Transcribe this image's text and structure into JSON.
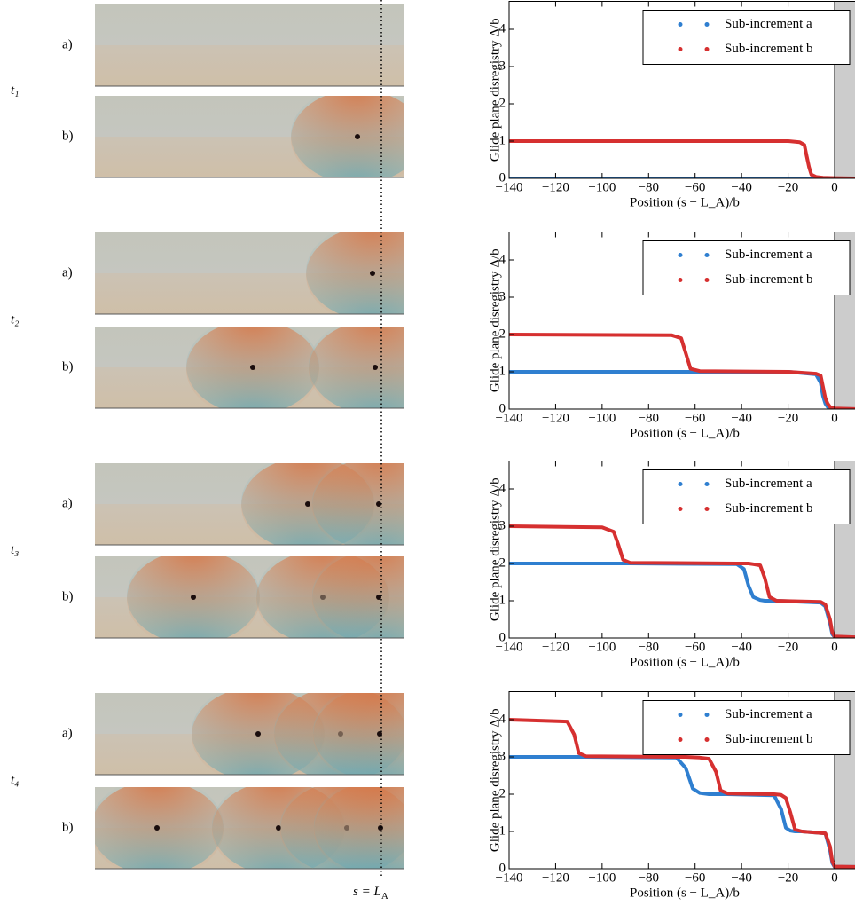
{
  "figure": {
    "time_panels": [
      {
        "time": "t₁",
        "rows": [
          "a)",
          "b)"
        ]
      },
      {
        "time": "t₂",
        "rows": [
          "a)",
          "b)"
        ]
      },
      {
        "time": "t₃",
        "rows": [
          "a)",
          "b)"
        ]
      },
      {
        "time": "t₄",
        "rows": [
          "a)",
          "b)"
        ]
      }
    ],
    "marker_label": {
      "text": "s = L",
      "sub": "A"
    }
  },
  "chart_data": [
    {
      "type": "line",
      "xlabel": "Position (s − L_A)/b",
      "ylabel": "Glide plane disregistry Δ/b",
      "legend": "upper right",
      "shaded_region": [
        0,
        20
      ],
      "shade_color": "#cccccc",
      "xlim": [
        -140,
        20
      ],
      "ylim": [
        0,
        4.75
      ],
      "xticks": [
        {
          "value": -140,
          "label": "−140"
        },
        {
          "value": -120,
          "label": "−120"
        },
        {
          "value": -100,
          "label": "−100"
        },
        {
          "value": -80,
          "label": "−80"
        },
        {
          "value": -60,
          "label": "−60"
        },
        {
          "value": -40,
          "label": "−40"
        },
        {
          "value": -20,
          "label": "−20"
        },
        0
      ],
      "yticks": [
        0,
        1,
        2,
        3,
        4
      ],
      "x": [
        -140,
        -20,
        -15,
        -13,
        -12,
        -11,
        -10,
        -8,
        -5,
        0,
        10
      ],
      "series": [
        {
          "name": "Sub-increment a",
          "color": "#2f7fd0",
          "values": [
            0,
            0,
            0,
            0,
            0,
            0,
            0,
            0,
            0,
            0,
            0
          ]
        },
        {
          "name": "Sub-increment b",
          "color": "#d63030",
          "values": [
            1,
            1,
            0.97,
            0.9,
            0.6,
            0.3,
            0.1,
            0.04,
            0.02,
            0.01,
            0
          ]
        }
      ]
    },
    {
      "type": "line",
      "xlabel": "Position (s − L_A)/b",
      "ylabel": "Glide plane disregistry Δ/b",
      "legend": "upper right",
      "shaded_region": [
        0,
        20
      ],
      "shade_color": "#cccccc",
      "xlim": [
        -140,
        20
      ],
      "ylim": [
        0,
        4.75
      ],
      "xticks": [
        {
          "value": -140,
          "label": "−140"
        },
        {
          "value": -120,
          "label": "−120"
        },
        {
          "value": -100,
          "label": "−100"
        },
        {
          "value": -80,
          "label": "−80"
        },
        {
          "value": -60,
          "label": "−60"
        },
        {
          "value": -40,
          "label": "−40"
        },
        {
          "value": -20,
          "label": "−20"
        },
        0
      ],
      "yticks": [
        0,
        1,
        2,
        3,
        4
      ],
      "x": [
        -140,
        -70,
        -66,
        -64,
        -62,
        -58,
        -20,
        -8,
        -6,
        -5,
        -4,
        -3,
        -2,
        0,
        10
      ],
      "series": [
        {
          "name": "Sub-increment a",
          "color": "#2f7fd0",
          "values": [
            1,
            1,
            1,
            1,
            1,
            1,
            1,
            0.93,
            0.7,
            0.35,
            0.15,
            0.06,
            0.03,
            0.01,
            0
          ]
        },
        {
          "name": "Sub-increment b",
          "color": "#d63030",
          "values": [
            2,
            1.98,
            1.9,
            1.5,
            1.08,
            1.02,
            1.0,
            0.95,
            0.9,
            0.6,
            0.3,
            0.15,
            0.06,
            0.02,
            0
          ]
        }
      ]
    },
    {
      "type": "line",
      "xlabel": "Position (s − L_A)/b",
      "ylabel": "Glide plane disregistry Δ/b",
      "legend": "upper right",
      "shaded_region": [
        0,
        20
      ],
      "shade_color": "#cccccc",
      "xlim": [
        -140,
        20
      ],
      "ylim": [
        0,
        4.75
      ],
      "xticks": [
        {
          "value": -140,
          "label": "−140"
        },
        {
          "value": -120,
          "label": "−120"
        },
        {
          "value": -100,
          "label": "−100"
        },
        {
          "value": -80,
          "label": "−80"
        },
        {
          "value": -60,
          "label": "−60"
        },
        {
          "value": -40,
          "label": "−40"
        },
        {
          "value": -20,
          "label": "−20"
        },
        0
      ],
      "yticks": [
        0,
        1,
        2,
        3,
        4
      ],
      "x": [
        -140,
        -100,
        -95,
        -93,
        -91,
        -88,
        -42,
        -39,
        -37,
        -35,
        -32,
        -30,
        -28,
        -25,
        -6,
        -4,
        -2,
        -1,
        0,
        10
      ],
      "series": [
        {
          "name": "Sub-increment a",
          "color": "#2f7fd0",
          "values": [
            2,
            2,
            2,
            2,
            2,
            2,
            1.98,
            1.85,
            1.4,
            1.1,
            1.02,
            1.0,
            1.0,
            1.0,
            0.95,
            0.85,
            0.4,
            0.1,
            0.03,
            0.02
          ]
        },
        {
          "name": "Sub-increment b",
          "color": "#d63030",
          "values": [
            3,
            2.97,
            2.85,
            2.5,
            2.1,
            2.02,
            2,
            2,
            2,
            1.98,
            1.95,
            1.6,
            1.1,
            1.0,
            0.97,
            0.9,
            0.5,
            0.15,
            0.04,
            0.02
          ]
        }
      ]
    },
    {
      "type": "line",
      "xlabel": "Position (s − L_A)/b",
      "ylabel": "Glide plane disregistry Δ/b",
      "legend": "upper right",
      "shaded_region": [
        0,
        20
      ],
      "shade_color": "#cccccc",
      "xlim": [
        -140,
        20
      ],
      "ylim": [
        0,
        4.75
      ],
      "xticks": [
        {
          "value": -140,
          "label": "−140"
        },
        {
          "value": -120,
          "label": "−120"
        },
        {
          "value": -100,
          "label": "−100"
        },
        {
          "value": -80,
          "label": "−80"
        },
        {
          "value": -60,
          "label": "−60"
        },
        {
          "value": -40,
          "label": "−40"
        },
        {
          "value": -20,
          "label": "−20"
        },
        0
      ],
      "yticks": [
        0,
        1,
        2,
        3,
        4
      ],
      "x": [
        -140,
        -115,
        -112,
        -110,
        -107,
        -68,
        -64,
        -61,
        -58,
        -54,
        -51,
        -49,
        -46,
        -26,
        -23,
        -21,
        -19,
        -17,
        -14,
        -4,
        -2,
        -1,
        0,
        10
      ],
      "series": [
        {
          "name": "Sub-increment a",
          "color": "#2f7fd0",
          "values": [
            3,
            3,
            3,
            3,
            3,
            2.98,
            2.7,
            2.15,
            2.03,
            2.0,
            2.0,
            2.0,
            2.0,
            1.97,
            1.6,
            1.1,
            1.02,
            1.0,
            1.0,
            0.95,
            0.5,
            0.15,
            0.05,
            0.05
          ]
        },
        {
          "name": "Sub-increment b",
          "color": "#d63030",
          "values": [
            4,
            3.95,
            3.6,
            3.1,
            3.02,
            3,
            3,
            2.99,
            2.98,
            2.95,
            2.6,
            2.1,
            2.02,
            2,
            1.98,
            1.9,
            1.5,
            1.05,
            1.0,
            0.95,
            0.6,
            0.2,
            0.06,
            0.05
          ]
        }
      ]
    }
  ]
}
